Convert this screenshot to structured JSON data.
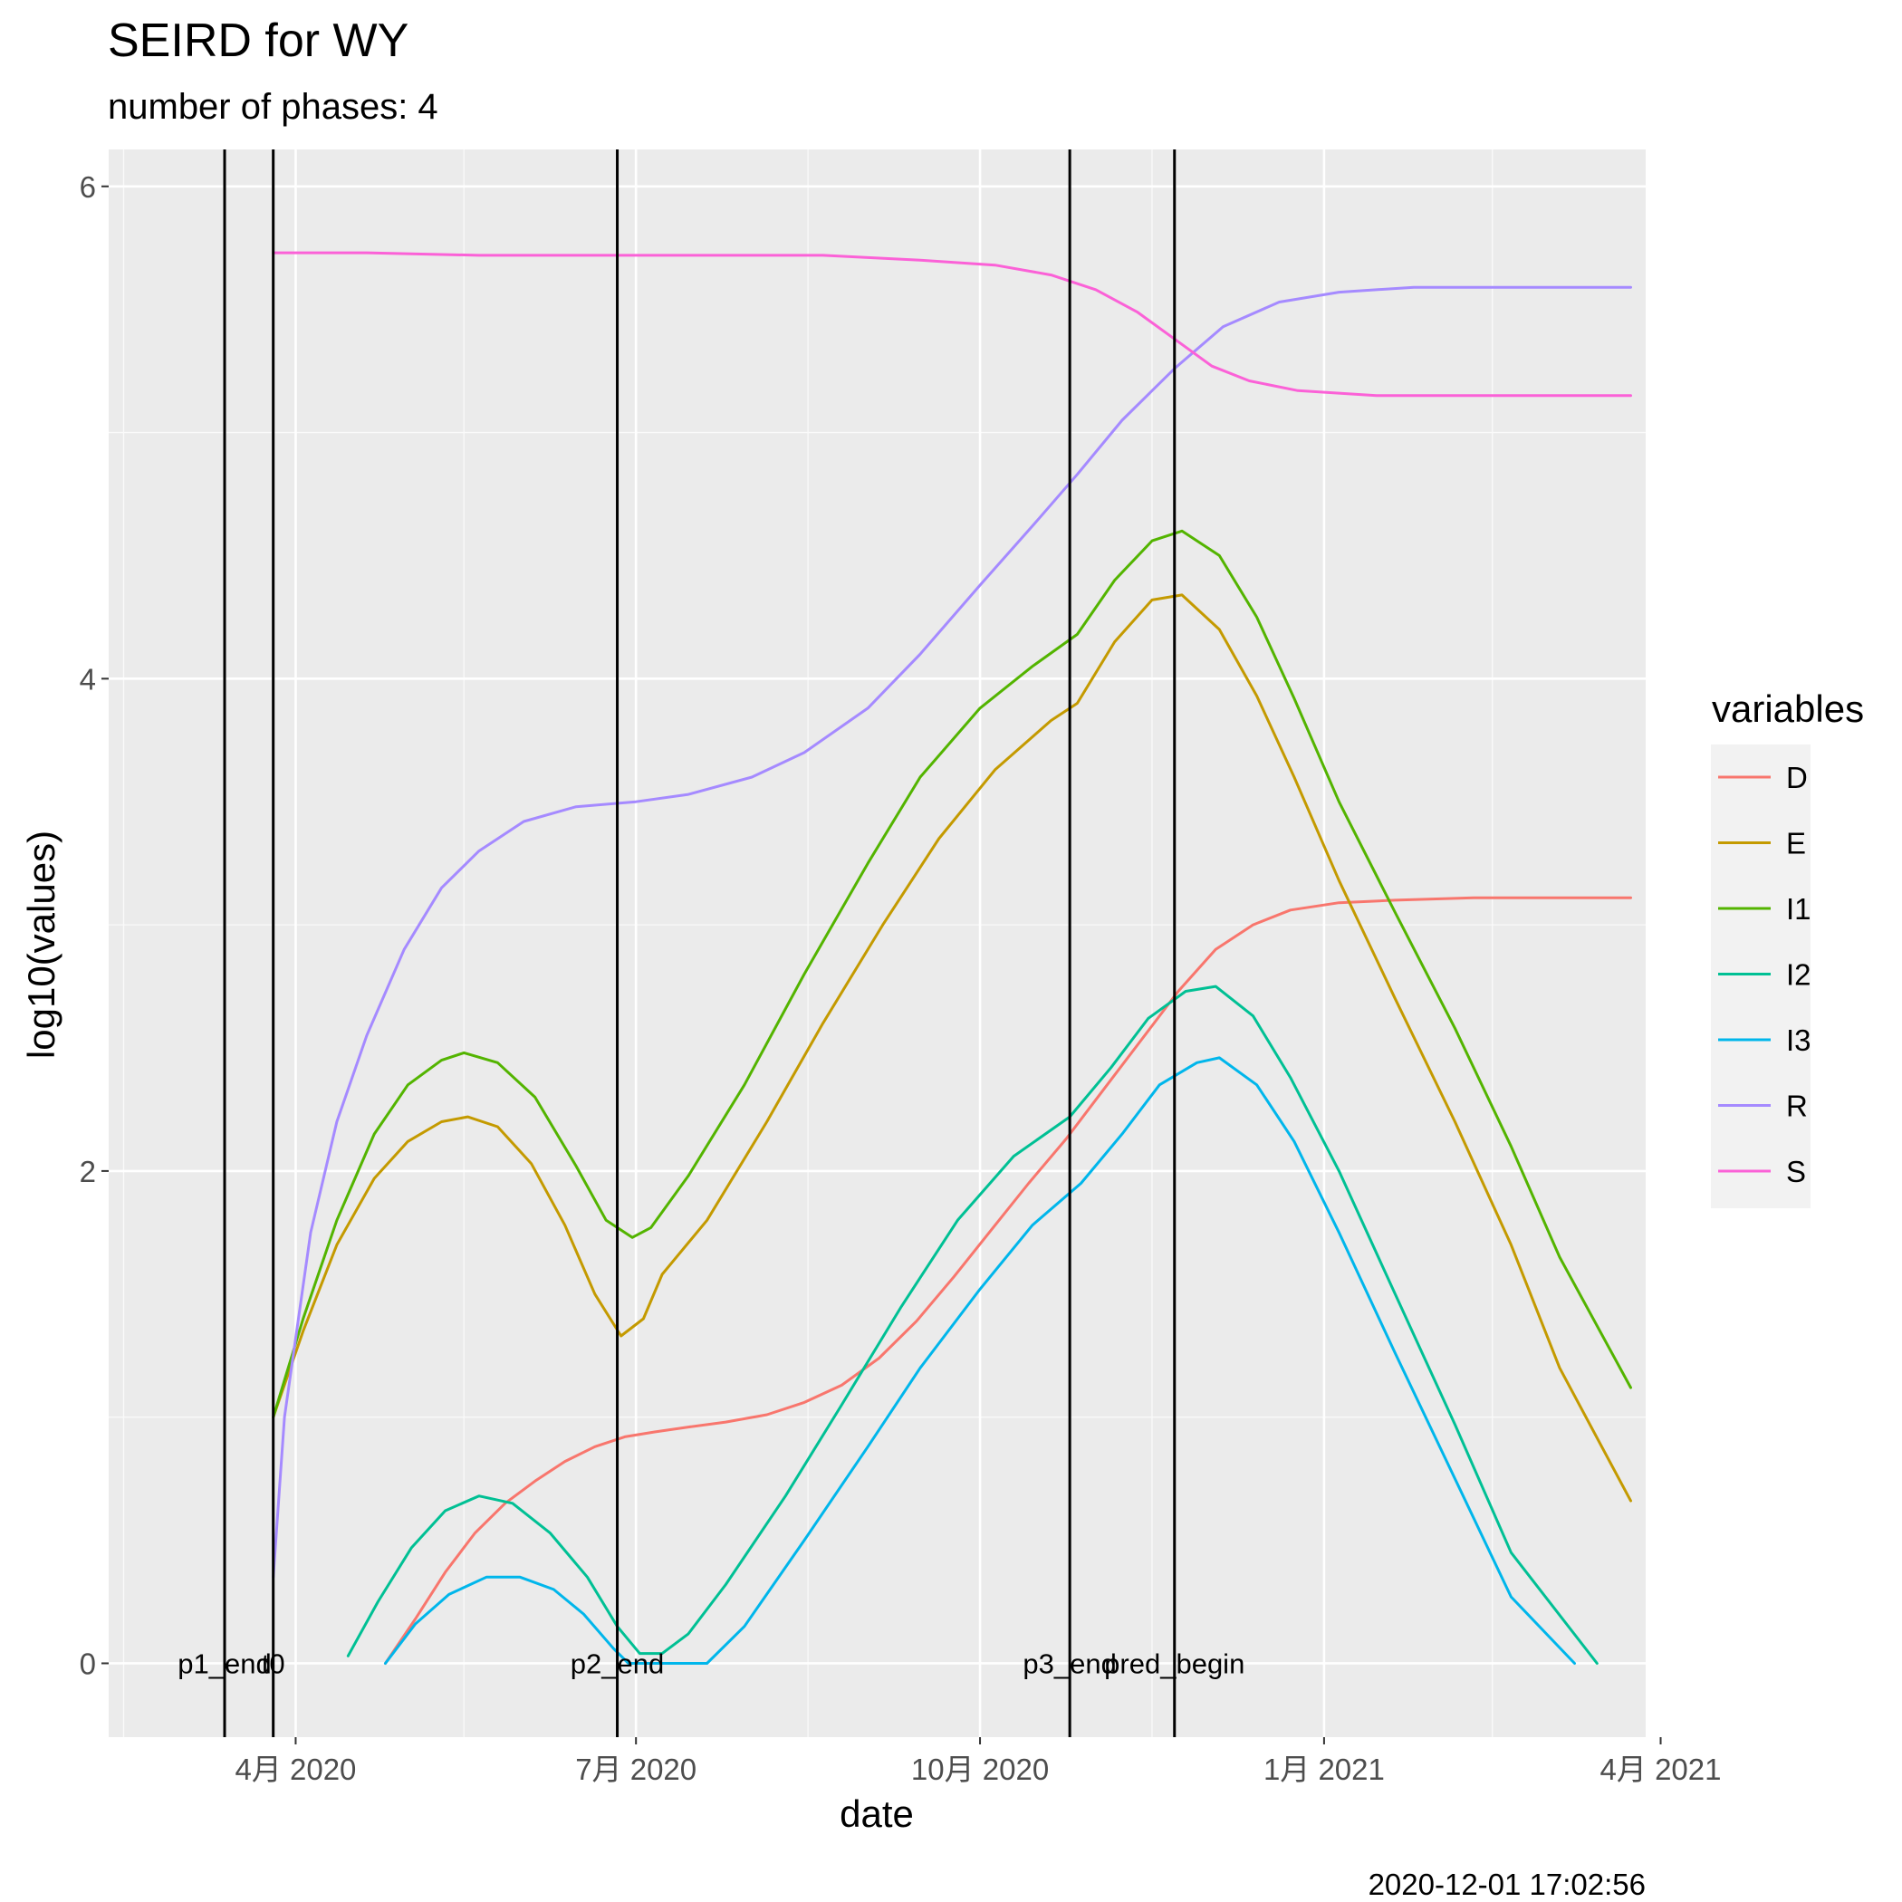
{
  "chart_data": {
    "type": "line",
    "title": "SEIRD for WY",
    "subtitle": "number of phases: 4",
    "xlabel": "date",
    "ylabel": "log10(values)",
    "caption": "2020-12-01 17:02:56",
    "legend_title": "variables",
    "legend_position": "right",
    "grid": true,
    "xlim": [
      "2020-02-11",
      "2021-03-28"
    ],
    "ylim": [
      -0.3,
      6.15
    ],
    "x_ticks": [
      {
        "date": "2020-04-01",
        "label": "4月 2020"
      },
      {
        "date": "2020-07-01",
        "label": "7月 2020"
      },
      {
        "date": "2020-10-01",
        "label": "10月 2020"
      },
      {
        "date": "2021-01-01",
        "label": "1月 2021"
      },
      {
        "date": "2021-04-01",
        "label": "4月 2021"
      }
    ],
    "x_minor_ticks": [
      "2020-02-15",
      "2020-05-16",
      "2020-08-16",
      "2020-11-16",
      "2021-02-15"
    ],
    "y_ticks": [
      0,
      2,
      4,
      6
    ],
    "y_minor_ticks": [
      1,
      3,
      5
    ],
    "vlines": [
      {
        "date": "2020-03-13",
        "label": "p1_end"
      },
      {
        "date": "2020-03-26",
        "label": "t0"
      },
      {
        "date": "2020-06-26",
        "label": "p2_end"
      },
      {
        "date": "2020-10-25",
        "label": "p3_end"
      },
      {
        "date": "2020-11-22",
        "label": "pred_begin"
      }
    ],
    "series": [
      {
        "name": "D",
        "color": "#F8766D",
        "points": [
          [
            "2020-04-25",
            0.0
          ],
          [
            "2020-05-03",
            0.18
          ],
          [
            "2020-05-11",
            0.37
          ],
          [
            "2020-05-19",
            0.53
          ],
          [
            "2020-05-27",
            0.65
          ],
          [
            "2020-06-04",
            0.74
          ],
          [
            "2020-06-12",
            0.82
          ],
          [
            "2020-06-20",
            0.88
          ],
          [
            "2020-06-28",
            0.92
          ],
          [
            "2020-07-06",
            0.94
          ],
          [
            "2020-07-15",
            0.96
          ],
          [
            "2020-07-25",
            0.98
          ],
          [
            "2020-08-05",
            1.01
          ],
          [
            "2020-08-15",
            1.06
          ],
          [
            "2020-08-25",
            1.13
          ],
          [
            "2020-09-04",
            1.24
          ],
          [
            "2020-09-14",
            1.39
          ],
          [
            "2020-09-24",
            1.57
          ],
          [
            "2020-10-04",
            1.76
          ],
          [
            "2020-10-14",
            1.95
          ],
          [
            "2020-10-24",
            2.13
          ],
          [
            "2020-11-03",
            2.33
          ],
          [
            "2020-11-13",
            2.53
          ],
          [
            "2020-11-23",
            2.73
          ],
          [
            "2020-12-03",
            2.9
          ],
          [
            "2020-12-13",
            3.0
          ],
          [
            "2020-12-23",
            3.06
          ],
          [
            "2021-01-05",
            3.09
          ],
          [
            "2021-01-20",
            3.1
          ],
          [
            "2021-02-10",
            3.11
          ],
          [
            "2021-03-24",
            3.11
          ]
        ]
      },
      {
        "name": "E",
        "color": "#C49A00",
        "points": [
          [
            "2020-03-26",
            1.0
          ],
          [
            "2020-04-03",
            1.35
          ],
          [
            "2020-04-12",
            1.7
          ],
          [
            "2020-04-22",
            1.97
          ],
          [
            "2020-05-01",
            2.12
          ],
          [
            "2020-05-10",
            2.2
          ],
          [
            "2020-05-17",
            2.22
          ],
          [
            "2020-05-25",
            2.18
          ],
          [
            "2020-06-03",
            2.03
          ],
          [
            "2020-06-12",
            1.78
          ],
          [
            "2020-06-20",
            1.5
          ],
          [
            "2020-06-27",
            1.33
          ],
          [
            "2020-07-03",
            1.4
          ],
          [
            "2020-07-08",
            1.58
          ],
          [
            "2020-07-20",
            1.8
          ],
          [
            "2020-08-05",
            2.2
          ],
          [
            "2020-08-20",
            2.6
          ],
          [
            "2020-09-05",
            3.0
          ],
          [
            "2020-09-20",
            3.35
          ],
          [
            "2020-10-05",
            3.63
          ],
          [
            "2020-10-20",
            3.83
          ],
          [
            "2020-10-27",
            3.9
          ],
          [
            "2020-11-06",
            4.15
          ],
          [
            "2020-11-16",
            4.32
          ],
          [
            "2020-11-24",
            4.34
          ],
          [
            "2020-12-04",
            4.2
          ],
          [
            "2020-12-14",
            3.93
          ],
          [
            "2020-12-24",
            3.6
          ],
          [
            "2021-01-05",
            3.18
          ],
          [
            "2021-01-20",
            2.7
          ],
          [
            "2021-02-05",
            2.2
          ],
          [
            "2021-02-20",
            1.7
          ],
          [
            "2021-03-05",
            1.2
          ],
          [
            "2021-03-24",
            0.66
          ]
        ]
      },
      {
        "name": "I1",
        "color": "#53B400",
        "points": [
          [
            "2020-03-26",
            1.0
          ],
          [
            "2020-04-03",
            1.4
          ],
          [
            "2020-04-12",
            1.8
          ],
          [
            "2020-04-22",
            2.15
          ],
          [
            "2020-05-01",
            2.35
          ],
          [
            "2020-05-10",
            2.45
          ],
          [
            "2020-05-16",
            2.48
          ],
          [
            "2020-05-25",
            2.44
          ],
          [
            "2020-06-04",
            2.3
          ],
          [
            "2020-06-15",
            2.02
          ],
          [
            "2020-06-23",
            1.8
          ],
          [
            "2020-06-30",
            1.73
          ],
          [
            "2020-07-05",
            1.77
          ],
          [
            "2020-07-15",
            1.98
          ],
          [
            "2020-07-30",
            2.35
          ],
          [
            "2020-08-15",
            2.8
          ],
          [
            "2020-09-01",
            3.25
          ],
          [
            "2020-09-15",
            3.6
          ],
          [
            "2020-10-01",
            3.88
          ],
          [
            "2020-10-15",
            4.05
          ],
          [
            "2020-10-27",
            4.18
          ],
          [
            "2020-11-06",
            4.4
          ],
          [
            "2020-11-16",
            4.56
          ],
          [
            "2020-11-24",
            4.6
          ],
          [
            "2020-12-04",
            4.5
          ],
          [
            "2020-12-14",
            4.25
          ],
          [
            "2020-12-24",
            3.92
          ],
          [
            "2021-01-05",
            3.5
          ],
          [
            "2021-01-20",
            3.05
          ],
          [
            "2021-02-05",
            2.58
          ],
          [
            "2021-02-20",
            2.1
          ],
          [
            "2021-03-05",
            1.65
          ],
          [
            "2021-03-24",
            1.12
          ]
        ]
      },
      {
        "name": "I2",
        "color": "#00C094",
        "points": [
          [
            "2020-04-15",
            0.03
          ],
          [
            "2020-04-23",
            0.25
          ],
          [
            "2020-05-02",
            0.47
          ],
          [
            "2020-05-11",
            0.62
          ],
          [
            "2020-05-20",
            0.68
          ],
          [
            "2020-05-29",
            0.65
          ],
          [
            "2020-06-08",
            0.53
          ],
          [
            "2020-06-18",
            0.35
          ],
          [
            "2020-06-26",
            0.15
          ],
          [
            "2020-07-02",
            0.04
          ],
          [
            "2020-07-08",
            0.04
          ],
          [
            "2020-07-15",
            0.12
          ],
          [
            "2020-07-25",
            0.32
          ],
          [
            "2020-08-10",
            0.68
          ],
          [
            "2020-08-25",
            1.05
          ],
          [
            "2020-09-10",
            1.45
          ],
          [
            "2020-09-25",
            1.8
          ],
          [
            "2020-10-10",
            2.06
          ],
          [
            "2020-10-25",
            2.22
          ],
          [
            "2020-11-05",
            2.42
          ],
          [
            "2020-11-15",
            2.62
          ],
          [
            "2020-11-25",
            2.73
          ],
          [
            "2020-12-03",
            2.75
          ],
          [
            "2020-12-13",
            2.63
          ],
          [
            "2020-12-23",
            2.38
          ],
          [
            "2021-01-05",
            2.0
          ],
          [
            "2021-01-20",
            1.5
          ],
          [
            "2021-02-05",
            0.97
          ],
          [
            "2021-02-20",
            0.45
          ],
          [
            "2021-03-15",
            0.0
          ]
        ]
      },
      {
        "name": "I3",
        "color": "#00B6EB",
        "points": [
          [
            "2020-04-25",
            0.0
          ],
          [
            "2020-05-03",
            0.16
          ],
          [
            "2020-05-12",
            0.28
          ],
          [
            "2020-05-22",
            0.35
          ],
          [
            "2020-05-31",
            0.35
          ],
          [
            "2020-06-09",
            0.3
          ],
          [
            "2020-06-17",
            0.2
          ],
          [
            "2020-06-25",
            0.06
          ],
          [
            "2020-06-29",
            0.0
          ],
          [
            "2020-07-20",
            0.0
          ],
          [
            "2020-07-30",
            0.15
          ],
          [
            "2020-08-15",
            0.5
          ],
          [
            "2020-09-01",
            0.88
          ],
          [
            "2020-09-15",
            1.2
          ],
          [
            "2020-10-01",
            1.52
          ],
          [
            "2020-10-15",
            1.78
          ],
          [
            "2020-10-28",
            1.95
          ],
          [
            "2020-11-08",
            2.15
          ],
          [
            "2020-11-18",
            2.35
          ],
          [
            "2020-11-28",
            2.44
          ],
          [
            "2020-12-04",
            2.46
          ],
          [
            "2020-12-14",
            2.35
          ],
          [
            "2020-12-24",
            2.12
          ],
          [
            "2021-01-05",
            1.75
          ],
          [
            "2021-01-20",
            1.26
          ],
          [
            "2021-02-05",
            0.75
          ],
          [
            "2021-02-20",
            0.27
          ],
          [
            "2021-03-09",
            0.0
          ]
        ]
      },
      {
        "name": "R",
        "color": "#A58AFF",
        "points": [
          [
            "2020-03-26",
            0.35
          ],
          [
            "2020-03-29",
            1.0
          ],
          [
            "2020-04-05",
            1.75
          ],
          [
            "2020-04-12",
            2.2
          ],
          [
            "2020-04-20",
            2.55
          ],
          [
            "2020-04-30",
            2.9
          ],
          [
            "2020-05-10",
            3.15
          ],
          [
            "2020-05-20",
            3.3
          ],
          [
            "2020-06-01",
            3.42
          ],
          [
            "2020-06-15",
            3.48
          ],
          [
            "2020-07-01",
            3.5
          ],
          [
            "2020-07-15",
            3.53
          ],
          [
            "2020-08-01",
            3.6
          ],
          [
            "2020-08-15",
            3.7
          ],
          [
            "2020-09-01",
            3.88
          ],
          [
            "2020-09-15",
            4.1
          ],
          [
            "2020-10-01",
            4.38
          ],
          [
            "2020-10-15",
            4.62
          ],
          [
            "2020-10-27",
            4.83
          ],
          [
            "2020-11-08",
            5.05
          ],
          [
            "2020-11-22",
            5.26
          ],
          [
            "2020-12-05",
            5.43
          ],
          [
            "2020-12-20",
            5.53
          ],
          [
            "2021-01-05",
            5.57
          ],
          [
            "2021-01-25",
            5.59
          ],
          [
            "2021-02-20",
            5.59
          ],
          [
            "2021-03-24",
            5.59
          ]
        ]
      },
      {
        "name": "S",
        "color": "#FB61D7",
        "points": [
          [
            "2020-03-26",
            5.73
          ],
          [
            "2020-04-20",
            5.73
          ],
          [
            "2020-05-20",
            5.72
          ],
          [
            "2020-06-20",
            5.72
          ],
          [
            "2020-07-20",
            5.72
          ],
          [
            "2020-08-20",
            5.72
          ],
          [
            "2020-09-15",
            5.7
          ],
          [
            "2020-10-05",
            5.68
          ],
          [
            "2020-10-20",
            5.64
          ],
          [
            "2020-11-01",
            5.58
          ],
          [
            "2020-11-12",
            5.49
          ],
          [
            "2020-11-22",
            5.38
          ],
          [
            "2020-12-02",
            5.27
          ],
          [
            "2020-12-12",
            5.21
          ],
          [
            "2020-12-25",
            5.17
          ],
          [
            "2021-01-15",
            5.15
          ],
          [
            "2021-02-15",
            5.15
          ],
          [
            "2021-03-24",
            5.15
          ]
        ]
      }
    ]
  }
}
